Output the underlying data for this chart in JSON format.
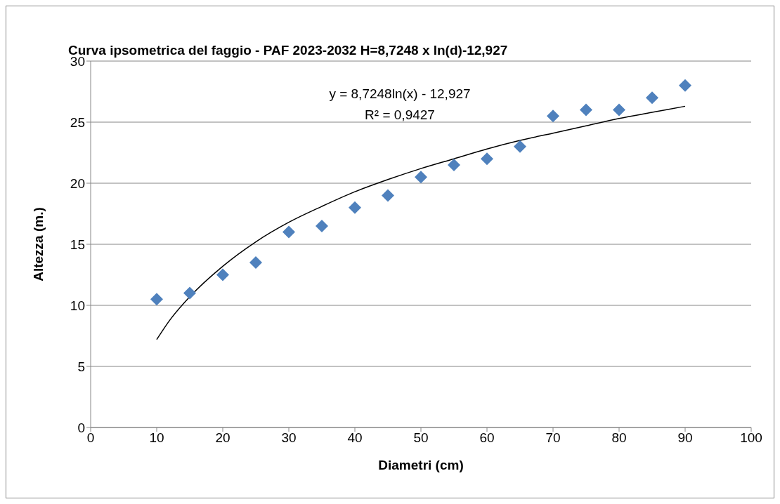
{
  "chart_data": {
    "type": "scatter",
    "title": "Curva ipsometrica del faggio - PAF 2023-2032 H=8,7248 x ln(d)-12,927",
    "xlabel": "Diametri (cm)",
    "ylabel": "Altezza (m.)",
    "annotations": [
      "y = 8,7248ln(x) - 12,927",
      "R² = 0,9427"
    ],
    "series": [
      {
        "color": "#4f81bd",
        "x": [
          10,
          15,
          20,
          25,
          30,
          35,
          40,
          45,
          50,
          55,
          60,
          65,
          70,
          75,
          80,
          85,
          90
        ],
        "values": [
          10.5,
          11,
          12.5,
          13.5,
          16,
          16.5,
          18,
          19,
          20.5,
          21.5,
          22,
          23,
          25.5,
          26,
          26,
          27,
          28
        ]
      },
      {
        "type": "line",
        "color": "#000000",
        "marker": "none",
        "x": [
          10,
          12,
          15,
          20,
          25,
          30,
          35,
          40,
          45,
          50,
          55,
          60,
          65,
          70,
          75,
          80,
          85,
          90
        ],
        "values": [
          7.2,
          8.8,
          10.7,
          13.2,
          15.2,
          16.8,
          18.1,
          19.3,
          20.3,
          21.2,
          22.0,
          22.8,
          23.5,
          24.1,
          24.7,
          25.3,
          25.8,
          26.3
        ]
      }
    ],
    "xlim": [
      0,
      100
    ],
    "xticks": [
      0,
      10,
      20,
      30,
      40,
      50,
      60,
      70,
      80,
      90,
      100
    ],
    "ylim": [
      0,
      30
    ],
    "yticks": [
      0,
      5,
      10,
      15,
      20,
      25,
      30
    ],
    "grid": "y",
    "marker": "diamond",
    "legend": false
  }
}
